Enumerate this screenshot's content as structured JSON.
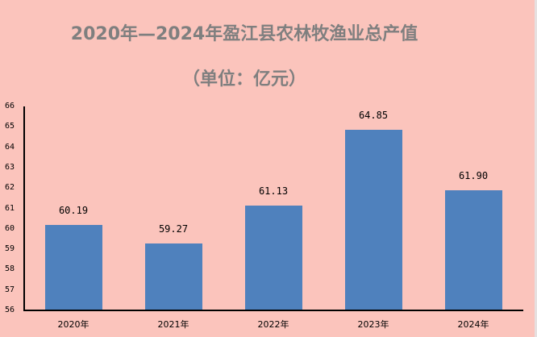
{
  "title": "2020年—2024年盈江县农林牧渔业总产值",
  "subtitle": "（单位：亿元）",
  "colors": {
    "background": "#fbc4bc",
    "bar": "#4f81bd",
    "title": "#7f7f7f"
  },
  "y_ticks": [
    "56",
    "57",
    "58",
    "59",
    "60",
    "61",
    "62",
    "63",
    "64",
    "65",
    "66"
  ],
  "bars": [
    {
      "category": "2020年",
      "value": 60.19,
      "label": "60.19"
    },
    {
      "category": "2021年",
      "value": 59.27,
      "label": "59.27"
    },
    {
      "category": "2022年",
      "value": 61.13,
      "label": "61.13"
    },
    {
      "category": "2023年",
      "value": 64.85,
      "label": "64.85"
    },
    {
      "category": "2024年",
      "value": 61.9,
      "label": "61.90"
    }
  ],
  "chart_data": {
    "type": "bar",
    "title": "2020年—2024年盈江县农林牧渔业总产值",
    "subtitle": "（单位：亿元）",
    "categories": [
      "2020年",
      "2021年",
      "2022年",
      "2023年",
      "2024年"
    ],
    "values": [
      60.19,
      59.27,
      61.13,
      64.85,
      61.9
    ],
    "xlabel": "",
    "ylabel": "",
    "ylim": [
      56,
      66
    ],
    "yticks": [
      56,
      57,
      58,
      59,
      60,
      61,
      62,
      63,
      64,
      65,
      66
    ],
    "grid": false,
    "legend": null,
    "data_labels": true
  }
}
